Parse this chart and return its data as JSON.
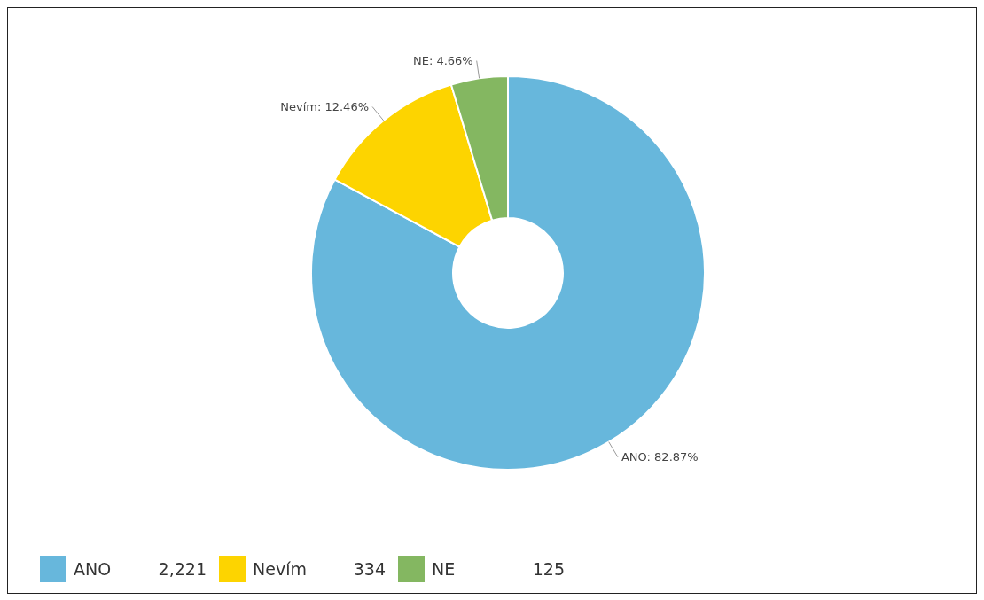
{
  "chart_data": {
    "type": "donut",
    "categories": [
      "ANO",
      "Nevím",
      "NE"
    ],
    "values": [
      82.87,
      12.46,
      4.66
    ],
    "colors": [
      "#67b7dc",
      "#fdd400",
      "#84b761"
    ],
    "value_labels": [
      "ANO: 82.87%",
      "Nevím: 12.46%",
      "NE: 4.66%"
    ],
    "annotations": [
      "2,221",
      "334",
      "125"
    ],
    "legend": "bottom"
  }
}
